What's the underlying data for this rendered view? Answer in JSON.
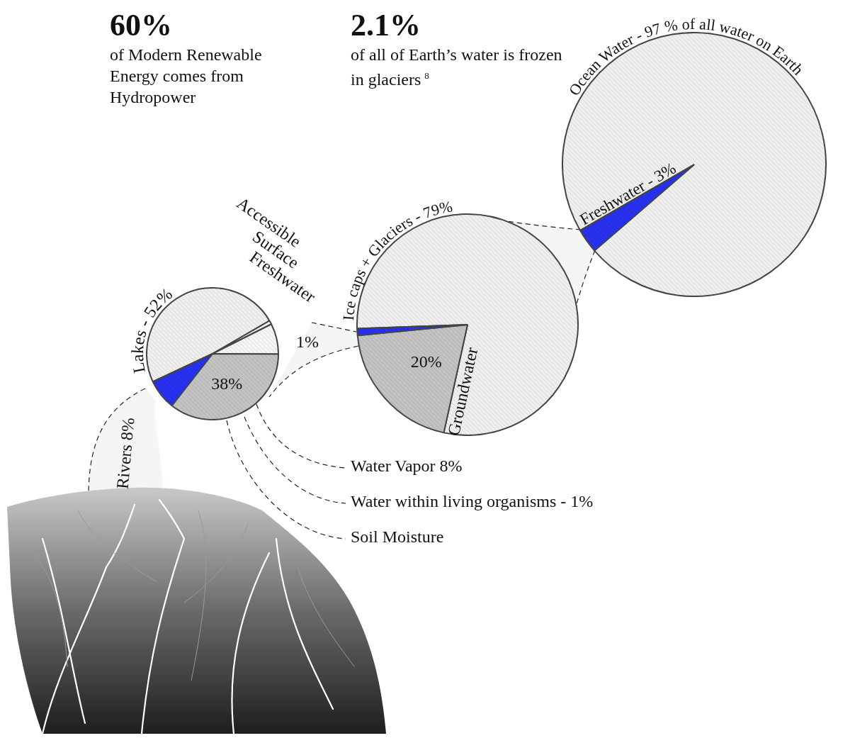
{
  "annotations": [
    {
      "headline": "60%",
      "text": "of Modern Renewable Energy comes from Hydropower"
    },
    {
      "headline": "2.1%",
      "text": "of all of Earth’s water is frozen in glaciers",
      "footnote": "8"
    }
  ],
  "chart_data": [
    {
      "type": "pie",
      "categories": [
        "Ocean Water - 97 % of all water on Earth",
        "Freshwater - 3%"
      ],
      "values": [
        97,
        3
      ],
      "colors": [
        "#efefef",
        "#2731ef"
      ]
    },
    {
      "type": "pie",
      "categories": [
        "Ice caps + Glaciers - 79%",
        "Groundwater",
        "Accessible Surface Freshwater"
      ],
      "values": [
        79,
        20,
        1
      ],
      "value_labels": [
        null,
        "20%",
        "1%"
      ],
      "colors": [
        "#efefef",
        "#c2c2c2",
        "#2731ef"
      ],
      "data_labels": true
    },
    {
      "type": "pie",
      "categories": [
        "Lakes - 52%",
        "Water within living organisms - 1%",
        "Water Vapor 8%",
        "Soil Moisture",
        "Rivers 8%"
      ],
      "values": [
        52,
        1,
        8,
        38,
        8
      ],
      "value_labels": [
        null,
        null,
        null,
        "38%",
        null
      ],
      "colors": [
        "#efefef",
        "#f5f5f5",
        "#f5f5f5",
        "#c2c2c2",
        "#2731ef"
      ],
      "data_labels": true
    }
  ]
}
